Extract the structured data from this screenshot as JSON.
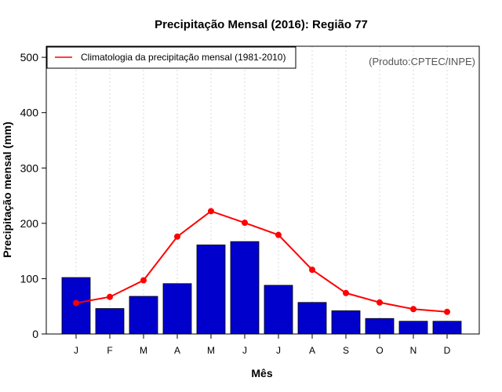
{
  "chart_data": {
    "type": "bar",
    "title": "Precipitação Mensal (2016): Região 77",
    "xlabel": "Mês",
    "ylabel": "Precipitação mensal (mm)",
    "ylim": [
      0,
      500
    ],
    "yticks": [
      0,
      100,
      200,
      300,
      400,
      500
    ],
    "categories": [
      "J",
      "F",
      "M",
      "A",
      "M",
      "J",
      "J",
      "A",
      "S",
      "O",
      "N",
      "D"
    ],
    "series": [
      {
        "name": "Precipitação mensal (2016)",
        "kind": "bar",
        "color": "#0000CD",
        "values": [
          102,
          46,
          68,
          91,
          161,
          167,
          88,
          57,
          42,
          28,
          23,
          23
        ]
      },
      {
        "name": "Climatologia da precipitação mensal (1981-2010)",
        "kind": "line",
        "color": "#FF0000",
        "values": [
          56,
          67,
          97,
          176,
          222,
          201,
          179,
          116,
          74,
          57,
          45,
          40
        ]
      }
    ],
    "legend": {
      "position": "top-left",
      "label": "Climatologia da precipitação mensal (1981-2010)"
    },
    "grid": "vertical-dotted",
    "credit": "(Produto:CPTEC/INPE)"
  }
}
